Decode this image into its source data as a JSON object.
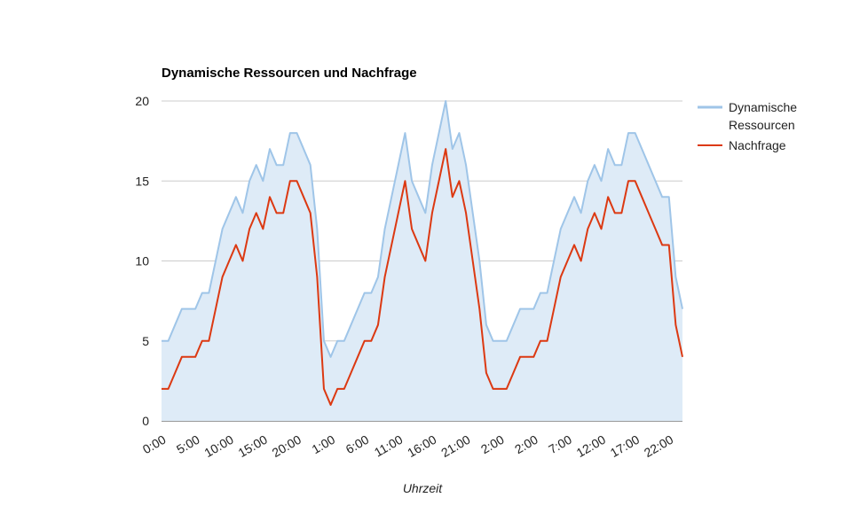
{
  "chart_data": {
    "type": "area",
    "title": "Dynamische Ressourcen und Nachfrage",
    "xlabel": "Uhrzeit",
    "ylabel": "",
    "ylim": [
      0,
      20
    ],
    "yticks": [
      0,
      5,
      10,
      15,
      20
    ],
    "grid": true,
    "legend_position": "right",
    "x_tick_labels": [
      "0:00",
      "5:00",
      "10:00",
      "15:00",
      "20:00",
      "1:00",
      "6:00",
      "11:00",
      "16:00",
      "21:00",
      "2:00",
      "2:00",
      "7:00",
      "12:00",
      "17:00",
      "22:00"
    ],
    "series": [
      {
        "name": "Dynamische Ressourcen",
        "color": "#9fc5e8",
        "fill": "#deebf7",
        "values": [
          5,
          5,
          6,
          7,
          7,
          7,
          8,
          8,
          10,
          12,
          13,
          14,
          13,
          15,
          16,
          15,
          17,
          16,
          16,
          18,
          18,
          17,
          16,
          12,
          5,
          4,
          5,
          5,
          6,
          7,
          8,
          8,
          9,
          12,
          14,
          16,
          18,
          15,
          14,
          13,
          16,
          18,
          20,
          17,
          18,
          16,
          13,
          10,
          6,
          5,
          5,
          5,
          6,
          7,
          7,
          7,
          8,
          8,
          10,
          12,
          13,
          14,
          13,
          15,
          16,
          15,
          17,
          16,
          16,
          18,
          18,
          17,
          16,
          15,
          14,
          14,
          9,
          7
        ]
      },
      {
        "name": "Nachfrage",
        "color": "#dc3912",
        "values": [
          2,
          2,
          3,
          4,
          4,
          4,
          5,
          5,
          7,
          9,
          10,
          11,
          10,
          12,
          13,
          12,
          14,
          13,
          13,
          15,
          15,
          14,
          13,
          9,
          2,
          1,
          2,
          2,
          3,
          4,
          5,
          5,
          6,
          9,
          11,
          13,
          15,
          12,
          11,
          10,
          13,
          15,
          17,
          14,
          15,
          13,
          10,
          7,
          3,
          2,
          2,
          2,
          3,
          4,
          4,
          4,
          5,
          5,
          7,
          9,
          10,
          11,
          10,
          12,
          13,
          12,
          14,
          13,
          13,
          15,
          15,
          14,
          13,
          12,
          11,
          11,
          6,
          4
        ]
      }
    ]
  }
}
